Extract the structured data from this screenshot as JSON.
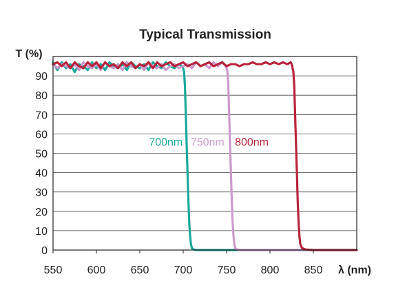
{
  "chart_data": {
    "type": "line",
    "title": "Typical Transmission",
    "ylabel": "T (%)",
    "xlabel": "λ (nm)",
    "xlim": [
      550,
      900
    ],
    "ylim": [
      0,
      100
    ],
    "x_ticks": [
      550,
      600,
      650,
      700,
      750,
      800,
      850
    ],
    "y_ticks": [
      0,
      10,
      20,
      30,
      40,
      50,
      60,
      70,
      80,
      90
    ],
    "grid": "horizontal",
    "series": [
      {
        "name": "700nm",
        "color": "#1ba89c",
        "x": [
          550,
          555,
          560,
          565,
          570,
          575,
          580,
          585,
          590,
          595,
          600,
          605,
          610,
          615,
          620,
          625,
          630,
          635,
          640,
          645,
          650,
          655,
          660,
          665,
          670,
          675,
          680,
          685,
          690,
          695,
          699,
          700,
          701,
          702,
          703,
          704,
          705,
          706,
          707,
          708,
          709,
          710,
          712,
          716,
          725,
          750,
          800,
          850,
          900
        ],
        "y": [
          97,
          93,
          97,
          94,
          96,
          92,
          96,
          95,
          93,
          97,
          94,
          96,
          93,
          97,
          95,
          94,
          96,
          93,
          97,
          95,
          94,
          96,
          93,
          97,
          95,
          94,
          97,
          95,
          94,
          96,
          95,
          94,
          92,
          85,
          70,
          55,
          40,
          25,
          14,
          7,
          3,
          1,
          0.3,
          0,
          0,
          0,
          0,
          0,
          0
        ]
      },
      {
        "name": "750nm",
        "color": "#cc99cc",
        "x": [
          550,
          555,
          560,
          565,
          570,
          575,
          580,
          585,
          590,
          595,
          600,
          605,
          610,
          615,
          620,
          625,
          630,
          635,
          640,
          645,
          650,
          655,
          660,
          665,
          670,
          675,
          680,
          685,
          690,
          695,
          700,
          705,
          710,
          715,
          720,
          725,
          730,
          735,
          740,
          745,
          749,
          750,
          751,
          752,
          753,
          754,
          755,
          756,
          757,
          758,
          759,
          760,
          762,
          766,
          775,
          800,
          850,
          900
        ],
        "y": [
          96,
          94,
          96,
          95,
          94,
          96,
          93,
          97,
          95,
          94,
          96,
          93,
          97,
          95,
          94,
          96,
          93,
          97,
          95,
          94,
          96,
          93,
          97,
          95,
          94,
          96,
          93,
          95,
          96,
          94,
          95,
          96,
          94,
          97,
          95,
          96,
          94,
          97,
          95,
          97,
          95,
          94,
          92,
          85,
          70,
          55,
          40,
          25,
          14,
          7,
          3,
          1,
          0.3,
          0,
          0,
          0,
          0,
          0
        ]
      },
      {
        "name": "800nm",
        "color": "#b8233c",
        "x": [
          550,
          555,
          560,
          565,
          570,
          575,
          580,
          585,
          590,
          595,
          600,
          605,
          610,
          615,
          620,
          625,
          630,
          635,
          640,
          645,
          650,
          655,
          660,
          665,
          670,
          675,
          680,
          685,
          690,
          695,
          700,
          705,
          710,
          715,
          720,
          725,
          730,
          735,
          740,
          745,
          750,
          755,
          760,
          765,
          770,
          775,
          780,
          785,
          790,
          795,
          800,
          805,
          810,
          815,
          820,
          824,
          825,
          826,
          827,
          828,
          829,
          830,
          831,
          832,
          833,
          834,
          835,
          837,
          841,
          850,
          875,
          900
        ],
        "y": [
          96,
          97,
          95,
          97,
          94,
          97,
          95,
          94,
          97,
          95,
          97,
          94,
          97,
          95,
          96,
          94,
          97,
          95,
          97,
          94,
          96,
          95,
          97,
          94,
          97,
          95,
          96,
          97,
          95,
          96,
          97,
          95,
          96,
          97,
          95,
          96,
          97,
          95,
          96,
          97,
          95,
          96,
          96,
          95,
          96,
          96,
          97,
          96,
          96,
          97,
          96,
          97,
          96,
          97,
          96,
          97,
          96,
          94,
          92,
          85,
          70,
          55,
          40,
          25,
          14,
          7,
          3,
          1,
          0.3,
          0,
          0,
          0
        ]
      }
    ],
    "annotations": [
      {
        "text": "700nm",
        "series": 0,
        "x": 680,
        "y": 54
      },
      {
        "text": "750nm",
        "series": 1,
        "x": 728,
        "y": 54
      },
      {
        "text": "800nm",
        "series": 2,
        "x": 779,
        "y": 54
      }
    ]
  }
}
